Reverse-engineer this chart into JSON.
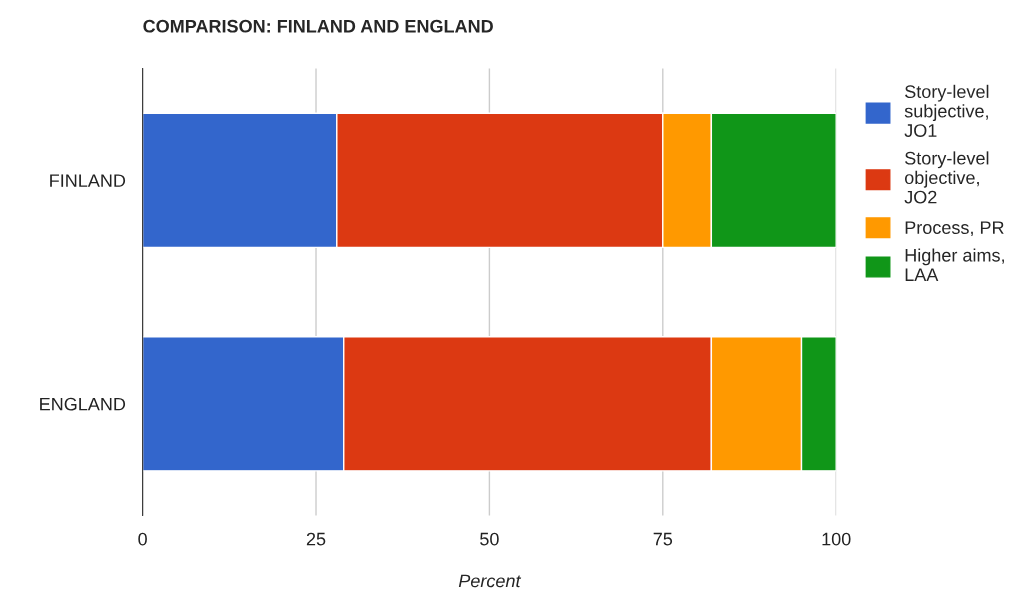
{
  "chart_data": {
    "type": "bar",
    "orientation": "horizontal",
    "stacked": true,
    "title": "COMPARISON: FINLAND AND ENGLAND",
    "xlabel": "Percent",
    "categories": [
      "FINLAND",
      "ENGLAND"
    ],
    "series": [
      {
        "name": "Story-level subjective, JO1",
        "color": "#3366cc",
        "values": [
          28,
          29
        ]
      },
      {
        "name": "Story-level objective, JO2",
        "color": "#dc3912",
        "values": [
          47,
          53
        ]
      },
      {
        "name": "Process, PR",
        "color": "#ff9900",
        "values": [
          7,
          13
        ]
      },
      {
        "name": "Higher aims, LAA",
        "color": "#109618",
        "values": [
          18,
          5
        ]
      }
    ],
    "xlim": [
      0,
      100
    ],
    "xticks": [
      0,
      25,
      50,
      75,
      100
    ],
    "grid": "x",
    "legend": "top right"
  }
}
